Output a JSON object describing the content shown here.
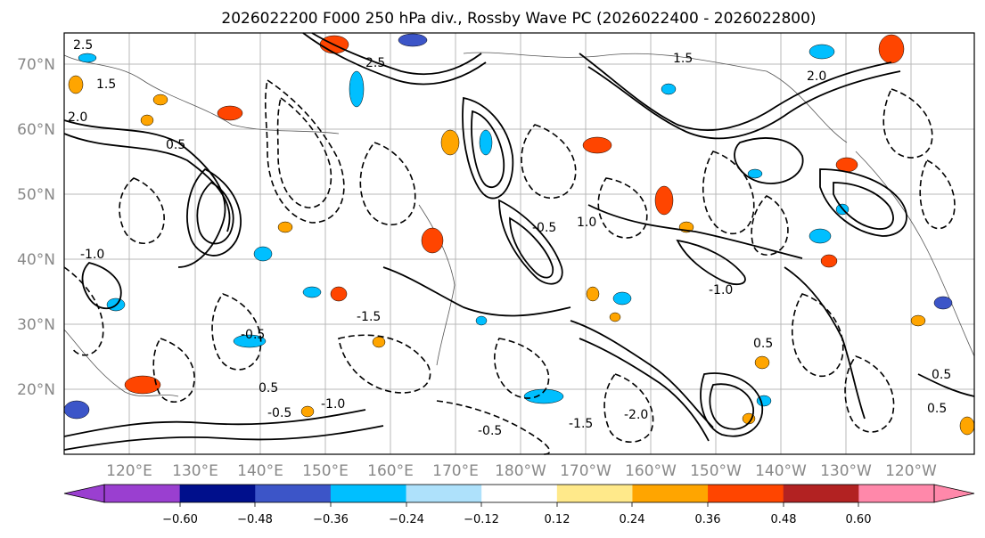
{
  "title": "2026022200 F000 250 hPa div., Rossby Wave PC (2026022400 - 2026022800)",
  "lat_labels": [
    "70°N",
    "60°N",
    "50°N",
    "40°N",
    "30°N",
    "20°N"
  ],
  "lon_labels": [
    "120°E",
    "130°E",
    "140°E",
    "150°E",
    "160°E",
    "170°E",
    "180°W",
    "170°W",
    "160°W",
    "150°W",
    "140°W",
    "130°W",
    "120°W"
  ],
  "contour_labels": [
    "2.5",
    "1.5",
    "2.0",
    "0.5",
    "1.0",
    "-1.0",
    "-0.5",
    "1.5",
    "-0.5",
    "0.5",
    "-1.5",
    "-2.0",
    "-0.5",
    "-1.0",
    "2.0",
    "-1.5",
    "0.5",
    "0.5",
    "2.5",
    "-0.5",
    "-1.0",
    "0.5"
  ],
  "colorbar": {
    "ticks": [
      "−0.60",
      "−0.48",
      "−0.36",
      "−0.24",
      "−0.12",
      "0.12",
      "0.24",
      "0.36",
      "0.48",
      "0.60"
    ],
    "colors": [
      "#9a3fd0",
      "#000f8c",
      "#3c55c8",
      "#00bfff",
      "#aee1fb",
      "#ffffff",
      "#ffe98a",
      "#ffa500",
      "#ff4500",
      "#b22222",
      "#ff88aa"
    ],
    "extend_low_color": "#9a3fd0",
    "extend_high_color": "#ff88aa"
  }
}
